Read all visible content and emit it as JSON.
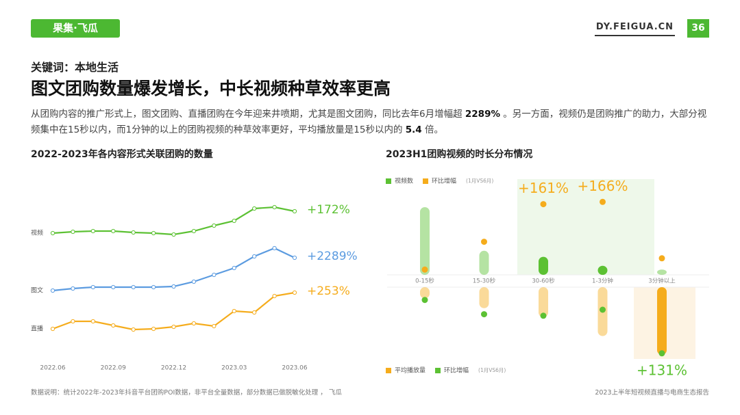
{
  "header": {
    "logo": "果集·飞瓜",
    "site": "DY.FEIGUA.CN",
    "page": "36"
  },
  "keyword": "关键词：本地生活",
  "title": "图文团购数量爆发增长，中长视频种草效率更高",
  "body": [
    {
      "text": "从团购内容的推广形式上，图文团购、直播团购在今年迎来井喷期，尤其是图文团购，同比去年6月增幅超 "
    },
    {
      "text": "2289%",
      "bold": true
    },
    {
      "text": " 。另一方面，视频仍是团购推广的助力，大部分视频集中在15秒以内，而1分钟的以上的团购视频的种草效率更好，平均播放量是15秒以内的 "
    },
    {
      "text": "5.4",
      "bold": true
    },
    {
      "text": " 倍。"
    }
  ],
  "chart_data": [
    {
      "type": "line",
      "title": "2022-2023年各内容形式关联团购的数量",
      "categories": [
        "2022.06",
        null,
        null,
        "2022.09",
        null,
        null,
        "2022.12",
        null,
        null,
        "2023.03",
        null,
        null,
        "2023.06"
      ],
      "ylim": [
        0,
        100
      ],
      "series": [
        {
          "name": "视频",
          "color": "#5cc133",
          "end_label": "+172%",
          "values": [
            79.5,
            80.5,
            81,
            81,
            80,
            79.5,
            78.5,
            81,
            85,
            88.5,
            97.5,
            98.5,
            95.5
          ]
        },
        {
          "name": "图文",
          "color": "#5b9be0",
          "end_label": "+2289%",
          "values": [
            37.5,
            39,
            40,
            40,
            40,
            40,
            40.5,
            44,
            49,
            54,
            62.5,
            68.5,
            61.5
          ]
        },
        {
          "name": "直播",
          "color": "#f5ac1c",
          "end_label": "+253%",
          "values": [
            9.5,
            15,
            15,
            12,
            9,
            9.5,
            11,
            13.5,
            11.5,
            22.5,
            21.5,
            33.5,
            36
          ]
        }
      ]
    },
    {
      "type": "diverging",
      "title": "2023H1团购视频的时长分布情况",
      "categories": [
        "0-15秒",
        "15-30秒",
        "30-60秒",
        "1-3分钟",
        "3分钟以上"
      ],
      "ylim": [
        0,
        100
      ],
      "legend_notes": [
        "(1月VS6月)",
        "(1月VS6月)"
      ],
      "highlight_up": [
        2,
        3
      ],
      "highlight_down": [
        4
      ],
      "series": [
        {
          "name": "视频数",
          "color": "#5cc133",
          "side": "up",
          "mark": "bar",
          "values": [
            90,
            32,
            24,
            12,
            7
          ]
        },
        {
          "name": "环比增幅",
          "color": "#f5ac1c",
          "side": "up",
          "mark": "dot",
          "values": [
            7,
            44,
            94,
            97,
            22
          ],
          "annotations": [
            {
              "index": 2,
              "text": "+161%"
            },
            {
              "index": 3,
              "text": "+166%"
            }
          ]
        },
        {
          "name": "平均播放量",
          "color": "#f5ac1c",
          "side": "down",
          "mark": "bar",
          "values": [
            15,
            28,
            40,
            65,
            90
          ]
        },
        {
          "name": "环比增幅",
          "color": "#5cc133",
          "side": "down",
          "mark": "dot",
          "values": [
            17,
            36,
            38,
            30,
            88
          ],
          "annotations": [
            {
              "index": 4,
              "text": "+131%"
            }
          ]
        }
      ]
    }
  ],
  "source": "数据说明：统计2022年-2023年抖音平台团购POI数据，非平台全量数据，部分数据已做脱敏化处理 ， 飞瓜",
  "footer": "2023上半年短视频直播与电商生态报告"
}
